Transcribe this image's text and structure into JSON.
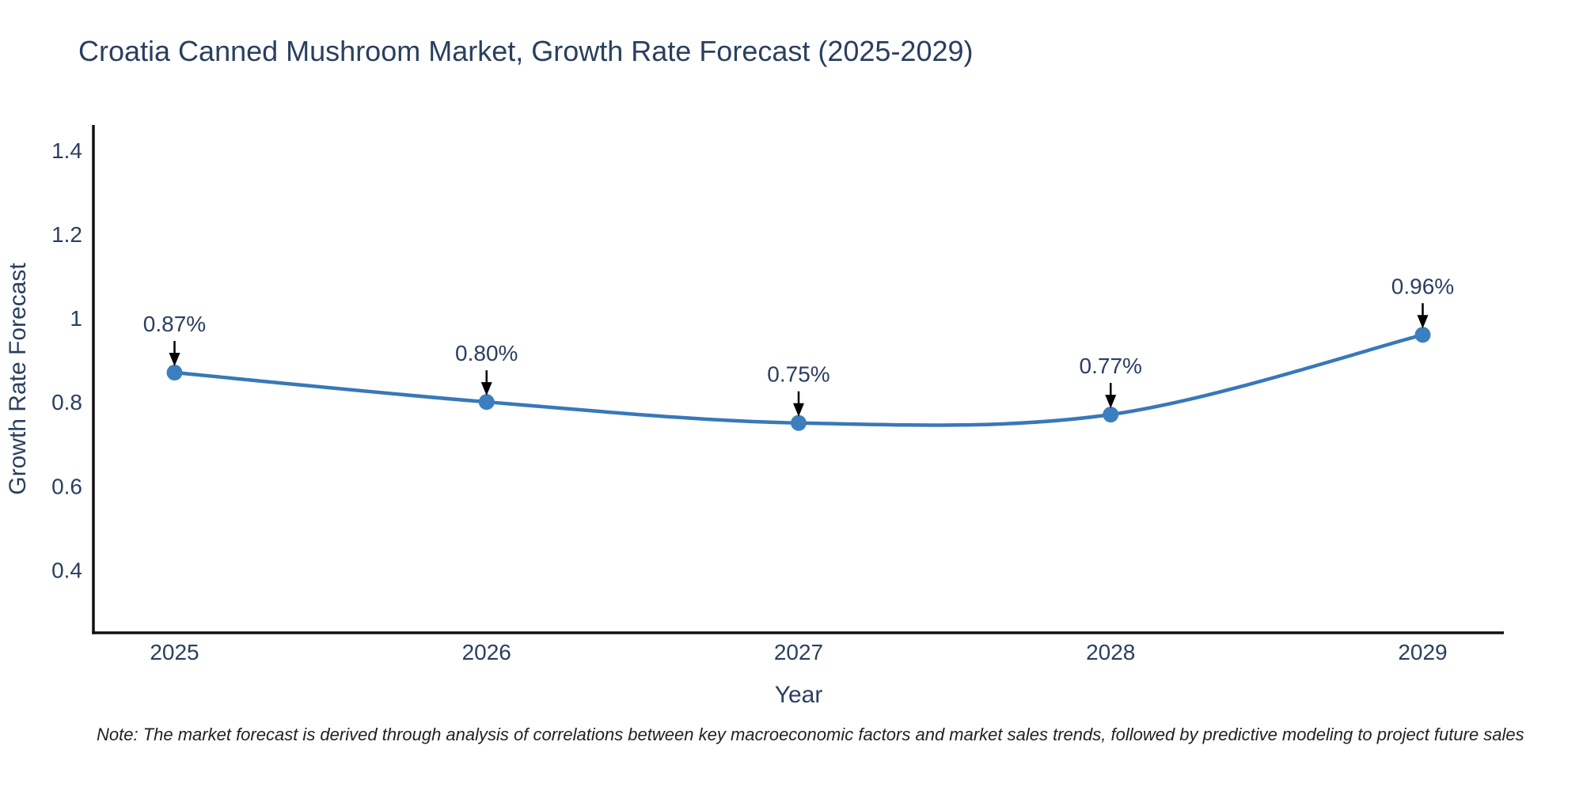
{
  "note": "Note: The market forecast is derived through analysis of correlations between key macroeconomic factors and market sales trends, followed by predictive modeling to project future sales",
  "chart_data": {
    "type": "line",
    "title": "Croatia Canned Mushroom Market, Growth Rate Forecast (2025-2029)",
    "xlabel": "Year",
    "ylabel": "Growth Rate Forecast",
    "x": [
      2025,
      2026,
      2027,
      2028,
      2029
    ],
    "values": [
      0.87,
      0.8,
      0.75,
      0.77,
      0.96
    ],
    "point_labels": [
      "0.87%",
      "0.80%",
      "0.75%",
      "0.77%",
      "0.96%"
    ],
    "x_tick_labels": [
      "2025",
      "2026",
      "2027",
      "2028",
      "2029"
    ],
    "y_ticks": [
      0.4,
      0.6,
      0.8,
      1,
      1.2,
      1.4
    ],
    "y_tick_labels": [
      "0.4",
      "0.6",
      "0.8",
      "1",
      "1.2",
      "1.4"
    ],
    "xlim": [
      2024.74,
      2029.26
    ],
    "ylim": [
      0.25,
      1.46
    ],
    "grid": false,
    "legend_position": "none",
    "line_shape": "spline",
    "colors": {
      "line": "#3878b8",
      "marker": "#3c7fbf",
      "text": "#2a3f5f",
      "axis": "#111111",
      "arrow": "#000000"
    }
  }
}
